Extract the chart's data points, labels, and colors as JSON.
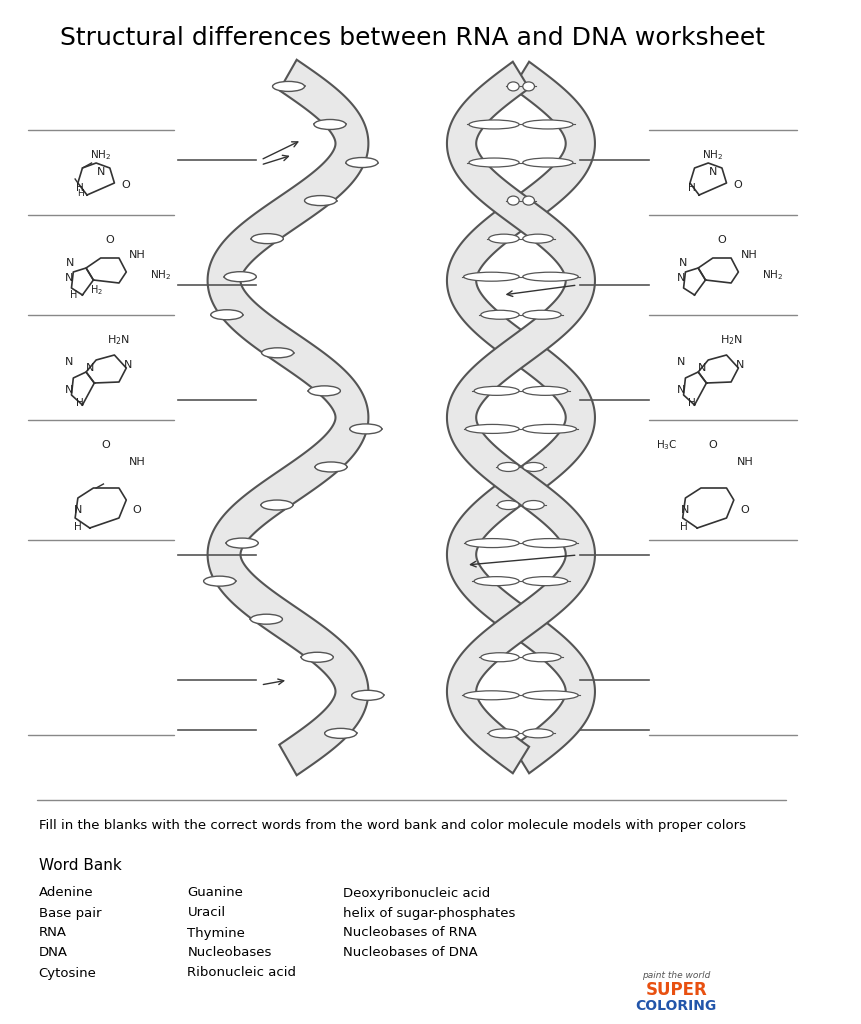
{
  "title": "Structural differences between RNA and DNA worksheet",
  "title_fontsize": 18,
  "background_color": "#ffffff",
  "instruction": "Fill in the blanks with the correct words from the word bank and color molecule models with proper colors",
  "word_bank_title": "Word Bank",
  "word_bank_col1": [
    "Adenine",
    "Base pair",
    "RNA",
    "DNA",
    "Cytosine"
  ],
  "word_bank_col2": [
    "Guanine",
    "Uracil",
    "Thymine",
    "Nucleobases",
    "Ribonucleic acid"
  ],
  "word_bank_col3": [
    "Deoxyribonucleic acid",
    "helix of sugar-phosphates",
    "Nucleobases of RNA",
    "Nucleobases of DNA"
  ],
  "line_color": "#888888",
  "text_color": "#000000"
}
